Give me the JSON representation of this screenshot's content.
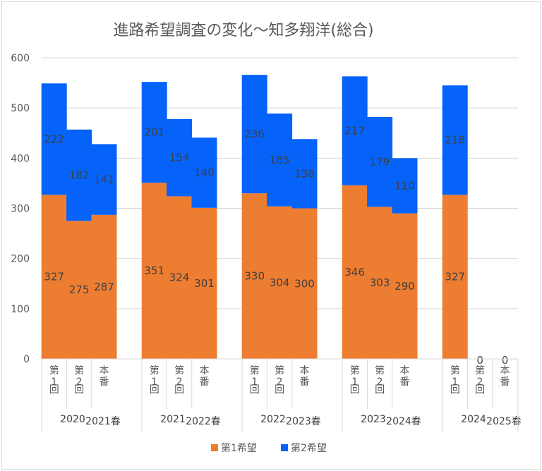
{
  "chart_data": {
    "type": "bar",
    "stacked": true,
    "title": "進路希望調査の変化～知多翔洋(総合)",
    "ylim": [
      0,
      600
    ],
    "yticks": [
      0,
      100,
      200,
      300,
      400,
      500,
      600
    ],
    "grid": true,
    "legend_position": "bottom",
    "groups": [
      {
        "year": "2020",
        "spring": "2021春",
        "items": [
          {
            "label": "第1回",
            "v1": 327,
            "v2": 222
          },
          {
            "label": "第2回",
            "v1": 275,
            "v2": 182
          },
          {
            "label": "本番",
            "v1": 287,
            "v2": 141
          }
        ]
      },
      {
        "year": "2021",
        "spring": "2022春",
        "items": [
          {
            "label": "第1回",
            "v1": 351,
            "v2": 201
          },
          {
            "label": "第2回",
            "v1": 324,
            "v2": 154
          },
          {
            "label": "本番",
            "v1": 301,
            "v2": 140
          }
        ]
      },
      {
        "year": "2022",
        "spring": "2023春",
        "items": [
          {
            "label": "第1回",
            "v1": 330,
            "v2": 236
          },
          {
            "label": "第2回",
            "v1": 304,
            "v2": 185
          },
          {
            "label": "本番",
            "v1": 300,
            "v2": 138
          }
        ]
      },
      {
        "year": "2023",
        "spring": "2024春",
        "items": [
          {
            "label": "第1回",
            "v1": 346,
            "v2": 217
          },
          {
            "label": "第2回",
            "v1": 303,
            "v2": 179
          },
          {
            "label": "本番",
            "v1": 290,
            "v2": 110
          }
        ]
      },
      {
        "year": "2024",
        "spring": "2025春",
        "items": [
          {
            "label": "第1回",
            "v1": 327,
            "v2": 218
          },
          {
            "label": "第2回",
            "v1": 0,
            "v2": 0,
            "total_label": "0"
          },
          {
            "label": "本番",
            "v1": 0,
            "v2": 0,
            "total_label": "0"
          }
        ]
      }
    ],
    "series": [
      {
        "name": "第1希望",
        "color": "#ed7d31"
      },
      {
        "name": "第2希望",
        "color": "#0563fa"
      }
    ]
  }
}
